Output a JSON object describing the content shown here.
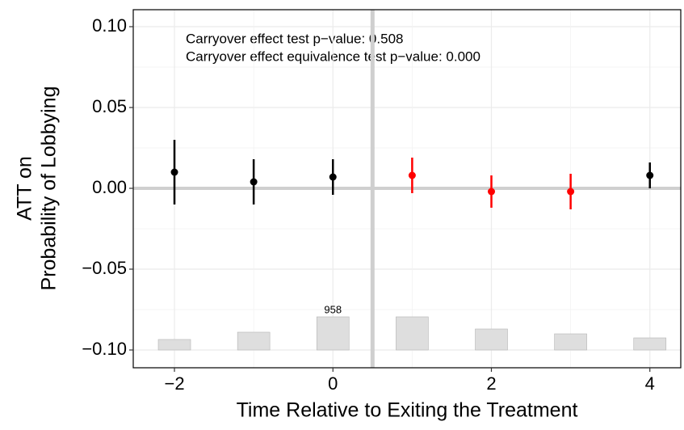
{
  "chart_data": {
    "type": "pointrange",
    "annotations": [
      "Carryover effect test p−value: 0.508",
      "Carryover effect equivalence test p−value: 0.000"
    ],
    "xlabel": "Time Relative to Exiting the Treatment",
    "ylabel": [
      "ATT on",
      "Probability of Lobbying"
    ],
    "x": [
      -2,
      -1,
      0,
      1,
      2,
      3,
      4
    ],
    "values": [
      0.01,
      0.004,
      0.007,
      0.008,
      -0.002,
      -0.002,
      0.008
    ],
    "lower": [
      -0.01,
      -0.01,
      -0.004,
      -0.003,
      -0.012,
      -0.013,
      0.0
    ],
    "upper": [
      0.03,
      0.018,
      0.018,
      0.019,
      0.008,
      0.009,
      0.016
    ],
    "colors": [
      "#000000",
      "#000000",
      "#000000",
      "#ff0000",
      "#ff0000",
      "#ff0000",
      "#000000"
    ],
    "counts": [
      304,
      514,
      958,
      958,
      607,
      467,
      350
    ],
    "count_color": "#dedede",
    "xlim": [
      -2.52,
      4.39
    ],
    "xticks": [
      {
        "value": -2,
        "label": "−2"
      },
      0,
      2,
      4
    ],
    "ylim": [
      -0.111,
      0.1105
    ],
    "yticks": [
      {
        "value": -0.1,
        "label": "−0.10"
      },
      {
        "value": -0.05,
        "label": "−0.05"
      },
      {
        "value": 0,
        "label": "0.00"
      },
      {
        "value": 0.05,
        "label": "0.05"
      },
      {
        "value": 0.1,
        "label": "0.10"
      }
    ],
    "vline": 0.5,
    "hline": 0,
    "grid": true
  }
}
